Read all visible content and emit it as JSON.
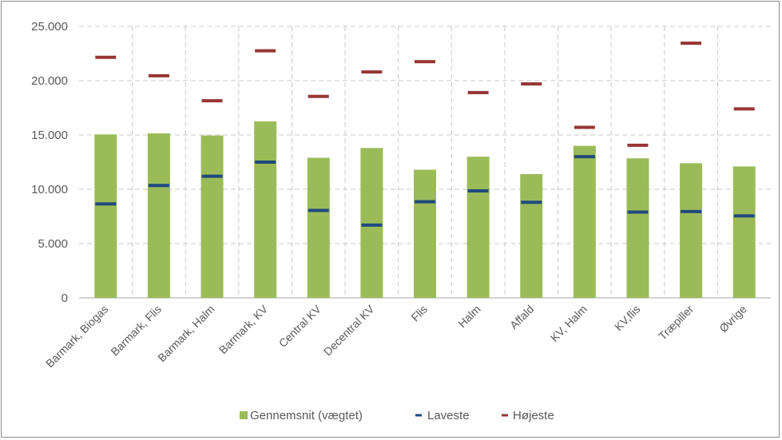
{
  "chart_data": {
    "type": "bar",
    "categories": [
      "Barmark, Biogas",
      "Barmark, Flis",
      "Barmark, Halm",
      "Barmark, KV",
      "Central KV",
      "Decentral KV",
      "Flis",
      "Halm",
      "Affald",
      "KV, Halm",
      "KV,flis",
      "Træpiller",
      "Øvrige"
    ],
    "series": [
      {
        "name": "Gennemsnit (vægtet)",
        "kind": "bar",
        "color": "#9bbb59",
        "values": [
          15050,
          15150,
          14950,
          16250,
          12900,
          13800,
          11800,
          13000,
          11400,
          14000,
          12850,
          12400,
          12100
        ]
      },
      {
        "name": "Laveste",
        "kind": "marker",
        "color": "#1f497d",
        "values": [
          8650,
          10350,
          11200,
          12500,
          8050,
          6700,
          8850,
          9850,
          8800,
          13000,
          7900,
          7950,
          7550
        ]
      },
      {
        "name": "Højeste",
        "kind": "marker",
        "color": "#963634",
        "values": [
          22150,
          20450,
          18150,
          22750,
          18550,
          20800,
          21750,
          18900,
          19700,
          15700,
          14050,
          23450,
          17400
        ]
      }
    ],
    "y_ticks": [
      "0",
      "5.000",
      "10.000",
      "15.000",
      "20.000",
      "25.000"
    ],
    "ylim": [
      0,
      25000
    ],
    "grid": true,
    "legend_position": "bottom"
  }
}
